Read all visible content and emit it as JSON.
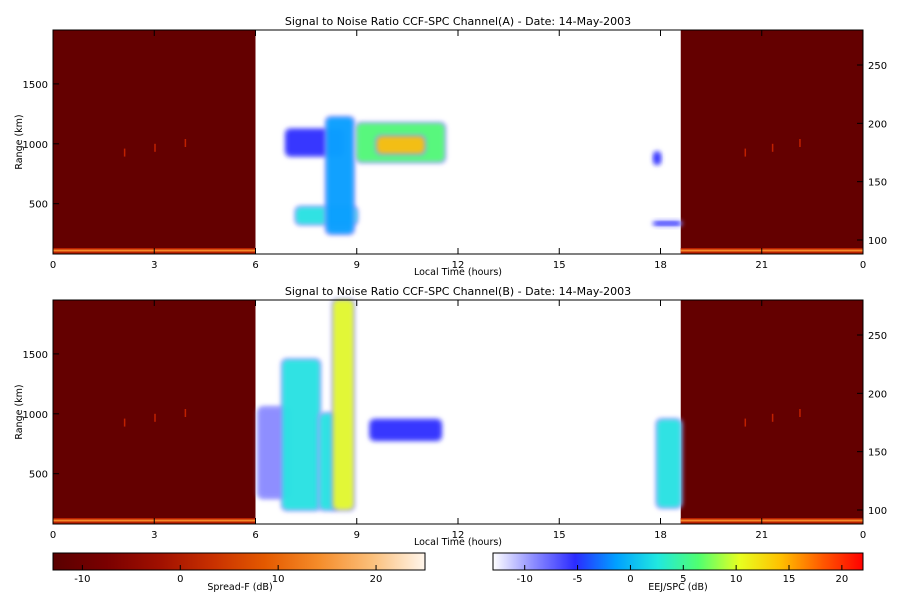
{
  "panels": [
    {
      "title": "Signal to Noise Ratio CCF-SPC Channel(A) - Date: 14-May-2003",
      "xlabel": "Local Time (hours)",
      "ylabel": "Range (km)"
    },
    {
      "title": "Signal to Noise Ratio CCF-SPC Channel(B) - Date: 14-May-2003",
      "xlabel": "Local Time (hours)",
      "ylabel": "Range (km)"
    }
  ],
  "colorbars": [
    {
      "label": "Spread-F (dB)",
      "ticks": [
        "-10",
        "0",
        "10",
        "20"
      ],
      "range": [
        -13,
        25
      ],
      "colors": [
        "#5a0000",
        "#7a0000",
        "#a01000",
        "#c83000",
        "#e45a00",
        "#f58c2a",
        "#fbbf7a",
        "#fff6ec"
      ]
    },
    {
      "label": "EEJ/SPC (dB)",
      "ticks": [
        "-10",
        "-5",
        "0",
        "5",
        "10",
        "15",
        "20"
      ],
      "range": [
        -13,
        22
      ],
      "colors": [
        "#ffffff",
        "#8b8bff",
        "#2b2bff",
        "#00a0ff",
        "#20e8e0",
        "#50ff70",
        "#e8ff20",
        "#ffc000",
        "#ff5a00",
        "#ff0000"
      ]
    }
  ],
  "chart_data": [
    {
      "type": "heatmap",
      "title": "Signal to Noise Ratio CCF-SPC Channel(A) - Date: 14-May-2003",
      "xlabel": "Local Time (hours)",
      "ylabel": "Range (km)",
      "xlim": [
        0,
        24
      ],
      "x_ticks": [
        "0",
        "3",
        "6",
        "9",
        "12",
        "15",
        "18",
        "21",
        "0"
      ],
      "ylim": [
        80,
        1950
      ],
      "y_ticks": [
        500,
        1000,
        1500
      ],
      "y2_ticks": [
        100,
        150,
        200,
        250
      ],
      "y2_lim": [
        88,
        280
      ],
      "spreadF_blocks": [
        [
          0,
          6
        ],
        [
          18.6,
          24
        ]
      ],
      "ring_ranges_km": [
        100,
        110
      ],
      "regions": [
        {
          "t": [
            6.9,
            8.6
          ],
          "range": [
            900,
            1120
          ],
          "snr": -6
        },
        {
          "t": [
            7.2,
            9.0
          ],
          "range": [
            330,
            470
          ],
          "snr": 4
        },
        {
          "t": [
            8.1,
            8.9
          ],
          "range": [
            250,
            1220
          ],
          "snr": 0
        },
        {
          "t": [
            9.0,
            11.6
          ],
          "range": [
            850,
            1170
          ],
          "snr": 8
        },
        {
          "t": [
            9.6,
            11.0
          ],
          "range": [
            920,
            1060
          ],
          "snr": 16
        },
        {
          "t": [
            17.8,
            18.0
          ],
          "range": [
            830,
            930
          ],
          "snr": -6
        },
        {
          "t": [
            17.8,
            18.6
          ],
          "range": [
            320,
            350
          ],
          "snr": -6
        }
      ]
    },
    {
      "type": "heatmap",
      "title": "Signal to Noise Ratio CCF-SPC Channel(B) - Date: 14-May-2003",
      "xlabel": "Local Time (hours)",
      "ylabel": "Range (km)",
      "xlim": [
        0,
        24
      ],
      "x_ticks": [
        "0",
        "3",
        "6",
        "9",
        "12",
        "15",
        "18",
        "21",
        "0"
      ],
      "ylim": [
        80,
        1950
      ],
      "y_ticks": [
        500,
        1000,
        1500
      ],
      "y2_ticks": [
        100,
        150,
        200,
        250
      ],
      "y2_lim": [
        88,
        280
      ],
      "spreadF_blocks": [
        [
          0,
          6
        ],
        [
          18.6,
          24
        ]
      ],
      "ring_ranges_km": [
        100,
        110
      ],
      "regions": [
        {
          "t": [
            6.1,
            7.0
          ],
          "range": [
            300,
            1050
          ],
          "snr": -8
        },
        {
          "t": [
            6.8,
            7.9
          ],
          "range": [
            200,
            1450
          ],
          "snr": 4
        },
        {
          "t": [
            7.9,
            8.4
          ],
          "range": [
            200,
            1000
          ],
          "snr": 2
        },
        {
          "t": [
            8.3,
            8.9
          ],
          "range": [
            200,
            1950
          ],
          "snr": 10
        },
        {
          "t": [
            9.4,
            11.5
          ],
          "range": [
            780,
            950
          ],
          "snr": -6
        },
        {
          "t": [
            17.9,
            18.6
          ],
          "range": [
            220,
            950
          ],
          "snr": 2
        }
      ]
    }
  ]
}
